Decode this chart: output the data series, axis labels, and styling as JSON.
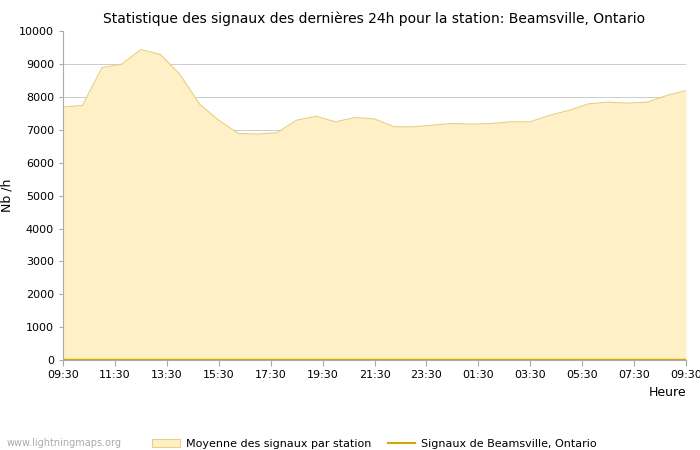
{
  "title": "Statistique des signaux des dernières 24h pour la station: Beamsville, Ontario",
  "xlabel": "Heure",
  "ylabel": "Nb /h",
  "ylim": [
    0,
    10000
  ],
  "yticks": [
    0,
    1000,
    2000,
    3000,
    4000,
    5000,
    6000,
    7000,
    8000,
    9000,
    10000
  ],
  "x_labels": [
    "09:30",
    "11:30",
    "13:30",
    "15:30",
    "17:30",
    "19:30",
    "21:30",
    "23:30",
    "01:30",
    "03:30",
    "05:30",
    "07:30",
    "09:30"
  ],
  "fill_color": "#FFF0C8",
  "fill_edge_color": "#E8D080",
  "line_color": "#D4A800",
  "background_color": "#ffffff",
  "grid_color": "#cccccc",
  "legend_label_fill": "Moyenne des signaux par station",
  "legend_label_line": "Signaux de Beamsville, Ontario",
  "watermark": "www.lightningmaps.org",
  "avg_values": [
    7700,
    7750,
    8900,
    9000,
    9450,
    9300,
    8700,
    7800,
    7300,
    6900,
    6880,
    6920,
    7300,
    7420,
    7250,
    7380,
    7340,
    7100,
    7100,
    7150,
    7200,
    7180,
    7200,
    7250,
    7250,
    7450,
    7600,
    7800,
    7850,
    7820,
    7850,
    8050,
    8200
  ],
  "station_values": [
    30,
    30,
    30,
    30,
    30,
    30,
    30,
    30,
    30,
    30,
    30,
    30,
    30,
    30,
    30,
    30,
    30,
    30,
    30,
    30,
    30,
    30,
    30,
    30,
    30,
    30,
    30,
    30,
    30,
    30,
    30,
    30,
    30
  ],
  "n_points": 33
}
